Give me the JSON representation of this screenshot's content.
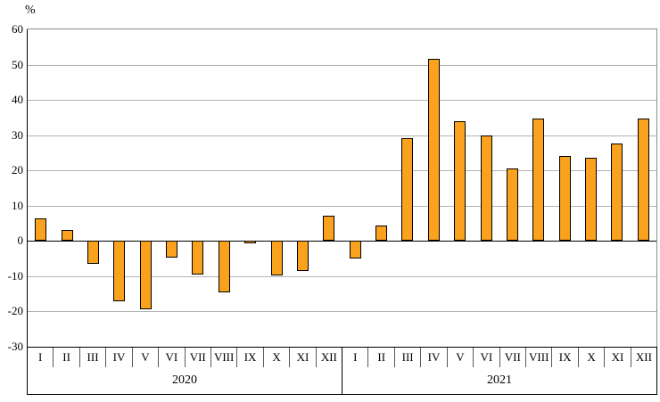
{
  "percent_label": "%",
  "chart_data": {
    "type": "bar",
    "title": "",
    "xlabel": "",
    "ylabel": "%",
    "ylim": [
      -30,
      60
    ],
    "ytick_step": 10,
    "yticks": [
      60,
      50,
      40,
      30,
      20,
      10,
      0,
      -10,
      -20,
      -30
    ],
    "grid": true,
    "legend": "none",
    "bar_color": "#FAA21E",
    "bar_border_color": "#000000",
    "groups": [
      {
        "year": "2020",
        "categories": [
          "I",
          "II",
          "III",
          "IV",
          "V",
          "VI",
          "VII",
          "VIII",
          "IX",
          "X",
          "XI",
          "XII"
        ],
        "values": [
          6.5,
          3.2,
          -6.5,
          -17.0,
          -19.5,
          -4.8,
          -9.5,
          -14.5,
          -0.7,
          -9.9,
          -8.6,
          7.1
        ]
      },
      {
        "year": "2021",
        "categories": [
          "I",
          "II",
          "III",
          "IV",
          "V",
          "VI",
          "VII",
          "VIII",
          "IX",
          "X",
          "XI",
          "XII"
        ],
        "values": [
          -4.9,
          4.4,
          29.2,
          51.7,
          34.0,
          29.9,
          20.5,
          34.6,
          24.0,
          23.7,
          27.6,
          34.6
        ]
      }
    ]
  }
}
